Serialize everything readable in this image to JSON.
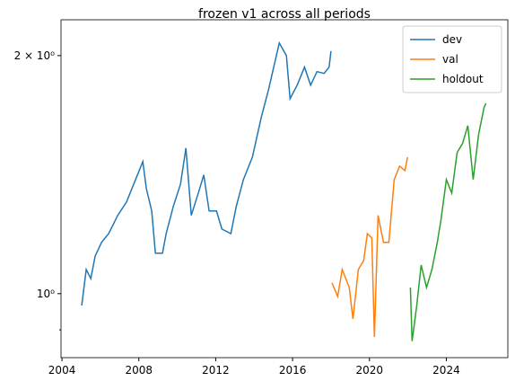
{
  "chart_data": {
    "type": "line",
    "title": "frozen v1 across all periods",
    "log_y": true,
    "legend": "upper right",
    "xlim": [
      2003.95,
      2027.2
    ],
    "xticks": [
      2004,
      2008,
      2012,
      2016,
      2020,
      2024
    ],
    "ylim": [
      0.83,
      2.22
    ],
    "yticks": [
      {
        "value": 1,
        "label": "10⁰"
      },
      {
        "value": 2,
        "label": "2 × 10⁰"
      }
    ],
    "yminor_ticks": [
      0.9
    ],
    "series": [
      {
        "name": "dev",
        "color": "#1f77b4",
        "x": [
          2005.03,
          2005.26,
          2005.5,
          2005.73,
          2006.06,
          2006.43,
          2006.9,
          2007.36,
          2007.83,
          2008.21,
          2008.39,
          2008.67,
          2008.86,
          2009.23,
          2009.42,
          2009.79,
          2010.17,
          2010.45,
          2010.73,
          2011.1,
          2011.38,
          2011.66,
          2012.04,
          2012.32,
          2012.79,
          2013.07,
          2013.44,
          2013.91,
          2014.38,
          2014.75,
          2015.07,
          2015.31,
          2015.68,
          2015.87,
          2016.24,
          2016.62,
          2016.94,
          2017.27,
          2017.64,
          2017.9,
          2018.0
        ],
        "values": [
          0.966,
          1.073,
          1.045,
          1.116,
          1.161,
          1.191,
          1.256,
          1.306,
          1.394,
          1.469,
          1.358,
          1.272,
          1.125,
          1.125,
          1.191,
          1.289,
          1.376,
          1.528,
          1.256,
          1.341,
          1.413,
          1.272,
          1.272,
          1.207,
          1.191,
          1.289,
          1.394,
          1.488,
          1.675,
          1.811,
          1.959,
          2.075,
          2.0,
          1.764,
          1.835,
          1.934,
          1.835,
          1.909,
          1.899,
          1.934,
          2.027
        ]
      },
      {
        "name": "val",
        "color": "#ff7f0e",
        "x": [
          2018.05,
          2018.35,
          2018.58,
          2018.95,
          2019.14,
          2019.42,
          2019.7,
          2019.89,
          2020.12,
          2020.26,
          2020.45,
          2020.73,
          2021.01,
          2021.29,
          2021.57,
          2021.85,
          2021.98
        ],
        "values": [
          1.032,
          0.992,
          1.073,
          1.018,
          0.929,
          1.073,
          1.102,
          1.191,
          1.176,
          0.882,
          1.256,
          1.161,
          1.161,
          1.394,
          1.45,
          1.431,
          1.488
        ]
      },
      {
        "name": "holdout",
        "color": "#2ca02c",
        "x": [
          2022.13,
          2022.22,
          2022.46,
          2022.69,
          2022.97,
          2023.25,
          2023.53,
          2023.72,
          2024.0,
          2024.28,
          2024.56,
          2024.84,
          2025.12,
          2025.4,
          2025.68,
          2025.96,
          2026.06
        ],
        "values": [
          1.018,
          0.871,
          0.966,
          1.087,
          1.018,
          1.073,
          1.161,
          1.24,
          1.394,
          1.34,
          1.508,
          1.548,
          1.631,
          1.394,
          1.589,
          1.718,
          1.741
        ]
      }
    ]
  }
}
